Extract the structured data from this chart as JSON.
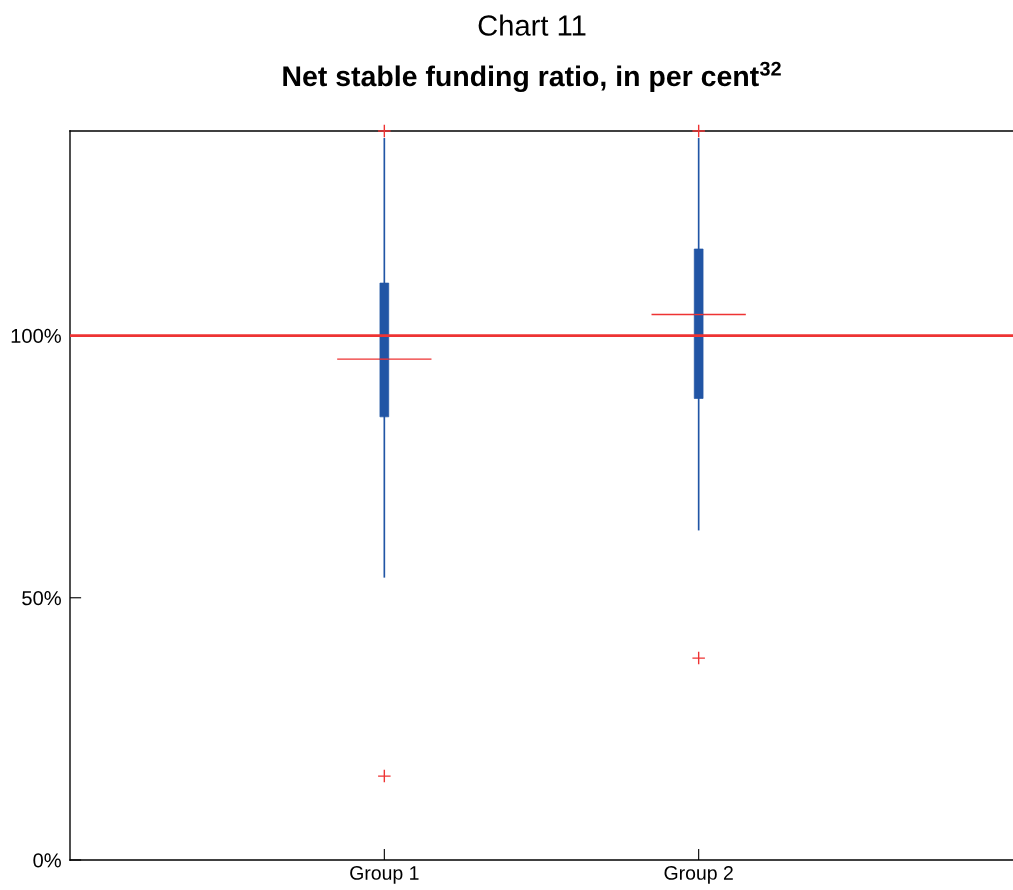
{
  "chart_data": {
    "type": "box",
    "title": "Chart 11",
    "subtitle": "Net stable funding ratio, in per cent$^{32}$",
    "categories": [
      "Group 1",
      "Group 2"
    ],
    "color": "#2155a5",
    "boxes": [
      {
        "low": 54,
        "q1": 84.5,
        "median": 95.5,
        "q3": 110,
        "high": 137.5,
        "outliers": [
          16,
          139
        ]
      },
      {
        "low": 63,
        "q1": 88,
        "median": 104,
        "q3": 116.5,
        "high": 137.5,
        "outliers": [
          38.5,
          139
        ]
      }
    ],
    "ylim": [
      0,
      139
    ],
    "yticks": [
      {
        "value": 0,
        "label": "0%"
      },
      {
        "value": 50,
        "label": "50%"
      },
      {
        "value": 100,
        "label": "100%"
      }
    ],
    "ref_lines": [
      {
        "axis": "y",
        "value": 100,
        "color": "#ee3333"
      }
    ],
    "grid": false,
    "legend": false
  }
}
